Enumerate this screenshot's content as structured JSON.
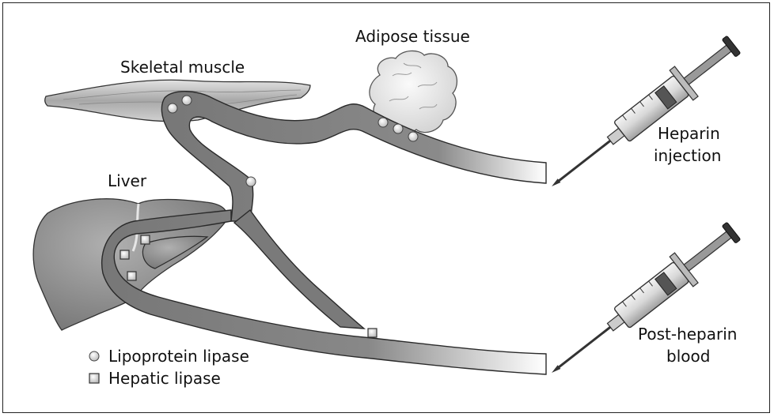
{
  "labels": {
    "adipose": "Adipose tissue",
    "muscle": "Skeletal muscle",
    "liver": "Liver",
    "heparin_line1": "Heparin",
    "heparin_line2": "injection",
    "post_line1": "Post-heparin",
    "post_line2": "blood"
  },
  "legend": {
    "lpl": "Lipoprotein lipase",
    "hl": "Hepatic lipase"
  },
  "icons": {
    "lipoprotein_lipase": "circle-marker",
    "hepatic_lipase": "square-marker",
    "syringe": "syringe"
  },
  "colors": {
    "vessel": "#7a7a7a",
    "vessel_edge": "#2a2a2a",
    "organ": "#8c8c8c",
    "muscle": "#bdbdbd",
    "adipose": "#e6e6e6"
  }
}
